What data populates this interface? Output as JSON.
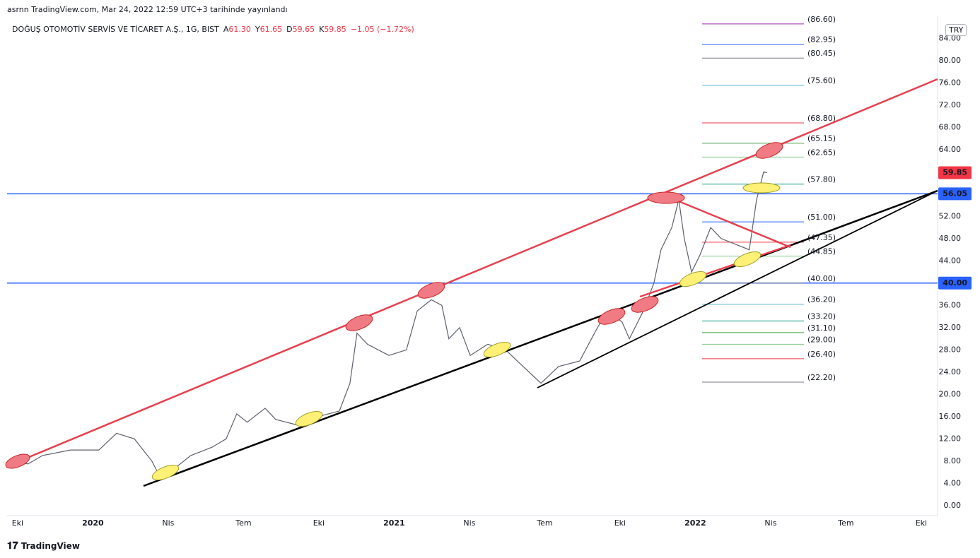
{
  "header": {
    "published": "asrnn TradingView.com, Mar 24, 2022 12:59 UTC+3 tarihinde yayınlandı",
    "brand": "TradingView"
  },
  "legend": {
    "symbol": "DOĞUŞ OTOMOTİV SERVİS VE TİCARET A.Ş., 1G, BIST",
    "fields": [
      {
        "key": "A",
        "value": "61.30"
      },
      {
        "key": "Y",
        "value": "61.65"
      },
      {
        "key": "D",
        "value": "59.65"
      },
      {
        "key": "K",
        "value": "59.85"
      }
    ],
    "change": "−1.05 (−1.72%)"
  },
  "currency": "TRY",
  "chart_data": {
    "type": "line",
    "x": [
      -0.42,
      0.42,
      0.99,
      2.11,
      3.24,
      3.94,
      4.65,
      5.35,
      5.63,
      6.2,
      6.9,
      7.75,
      8.31,
      8.73,
      9.15,
      9.86,
      10.28,
      11.13,
      11.97,
      12.82,
      13.24,
      13.52,
      13.94,
      14.79,
      15.49,
      15.92,
      16.48,
      16.9,
      17.18,
      17.61,
      18.03,
      18.73,
      19.44,
      20.14,
      20.85,
      21.55,
      22.39,
      23.1,
      23.52,
      24.08,
      24.37,
      24.93,
      25.35,
      25.63,
      26.06,
      26.34,
      26.56,
      26.85,
      27.18,
      27.61,
      28.03,
      28.59,
      29.15,
      29.44,
      29.72,
      29.86
    ],
    "series": [
      {
        "name": "DOAS",
        "color": "#5d606b",
        "values": [
          8,
          7.5,
          9,
          10,
          10,
          13,
          12,
          8,
          5.5,
          6.5,
          9,
          10.5,
          12,
          16.5,
          15,
          17.5,
          15.5,
          14.5,
          16,
          17,
          22,
          31,
          29,
          27,
          28,
          35,
          37,
          36,
          30,
          32,
          27,
          29,
          28,
          25,
          22,
          25,
          26,
          32,
          35,
          33,
          30,
          35,
          40,
          46,
          50,
          55,
          48,
          42,
          45,
          50,
          48,
          47,
          46,
          55,
          60,
          59.85
        ]
      }
    ],
    "xlim": [
      -0.42,
      36.65
    ],
    "xticks": [
      {
        "value": 0,
        "label": "Eki"
      },
      {
        "value": 3,
        "label": "2020"
      },
      {
        "value": 6,
        "label": "Nis"
      },
      {
        "value": 9,
        "label": "Tem"
      },
      {
        "value": 12,
        "label": "Eki"
      },
      {
        "value": 15,
        "label": "2021"
      },
      {
        "value": 18,
        "label": "Nis"
      },
      {
        "value": 21,
        "label": "Tem"
      },
      {
        "value": 24,
        "label": "Eki"
      },
      {
        "value": 27,
        "label": "2022"
      },
      {
        "value": 30,
        "label": "Nis"
      },
      {
        "value": 33,
        "label": "Tem"
      },
      {
        "value": 36,
        "label": "Eki"
      }
    ],
    "ylim": [
      -1.8,
      88.1
    ],
    "yticks": [
      {
        "value": 0,
        "label": "0.00"
      },
      {
        "value": 4,
        "label": "4.00"
      },
      {
        "value": 8,
        "label": "8.00"
      },
      {
        "value": 12,
        "label": "12.00"
      },
      {
        "value": 16,
        "label": "16.00"
      },
      {
        "value": 20,
        "label": "20.00"
      },
      {
        "value": 24,
        "label": "24.00"
      },
      {
        "value": 28,
        "label": "28.00"
      },
      {
        "value": 32,
        "label": "32.00"
      },
      {
        "value": 36,
        "label": "36.00"
      },
      {
        "value": 40,
        "label": "40.00"
      },
      {
        "value": 44,
        "label": "44.00"
      },
      {
        "value": 48,
        "label": "48.00"
      },
      {
        "value": 52,
        "label": "52.00"
      },
      {
        "value": 56,
        "label": "56.00"
      },
      {
        "value": 60,
        "label": "60.00"
      },
      {
        "value": 64,
        "label": "64.00"
      },
      {
        "value": 68,
        "label": "68.00"
      },
      {
        "value": 72,
        "label": "72.00"
      },
      {
        "value": 76,
        "label": "76.00"
      },
      {
        "value": 80,
        "label": "80.00"
      },
      {
        "value": 84,
        "label": "84.00"
      }
    ],
    "price_labels": [
      {
        "value": 59.85,
        "label": "59.85",
        "color": "#f23645"
      },
      {
        "value": 56.05,
        "label": "56.05",
        "color": "#2962ff"
      },
      {
        "value": 40,
        "label": "40.00",
        "color": "#2962ff"
      }
    ],
    "horizontal_lines": [
      {
        "value": 56.05,
        "color": "#2962ff"
      },
      {
        "value": 40,
        "color": "#2962ff"
      }
    ],
    "fib_levels": [
      {
        "value": 86.6,
        "label": "(86.60)",
        "color": "#9c27b0"
      },
      {
        "value": 82.95,
        "label": "(82.95)",
        "color": "#2962ff"
      },
      {
        "value": 80.45,
        "label": "(80.45)",
        "color": "#787b86"
      },
      {
        "value": 75.6,
        "label": "(75.60)",
        "color": "#4fb5d9"
      },
      {
        "value": 68.8,
        "label": "(68.80)",
        "color": "#f23645"
      },
      {
        "value": 65.15,
        "label": "(65.15)",
        "color": "#43a047"
      },
      {
        "value": 62.65,
        "label": "(62.65)",
        "color": "#81c784"
      },
      {
        "value": 57.8,
        "label": "(57.80)",
        "color": "#089981"
      },
      {
        "value": 51,
        "label": "(51.00)",
        "color": "#2962ff"
      },
      {
        "value": 47.35,
        "label": "(47.35)",
        "color": "#f23645"
      },
      {
        "value": 44.85,
        "label": "(44.85)",
        "color": "#81c784"
      },
      {
        "value": 40,
        "label": "(40.00)",
        "color": "#787b86"
      },
      {
        "value": 36.2,
        "label": "(36.20)",
        "color": "#4fb5d9"
      },
      {
        "value": 33.2,
        "label": "(33.20)",
        "color": "#089981"
      },
      {
        "value": 31.1,
        "label": "(31.10)",
        "color": "#43a047"
      },
      {
        "value": 29,
        "label": "(29.00)",
        "color": "#81c784"
      },
      {
        "value": 26.4,
        "label": "(26.40)",
        "color": "#f23645"
      },
      {
        "value": 22.2,
        "label": "(22.20)",
        "color": "#787b86"
      }
    ]
  }
}
